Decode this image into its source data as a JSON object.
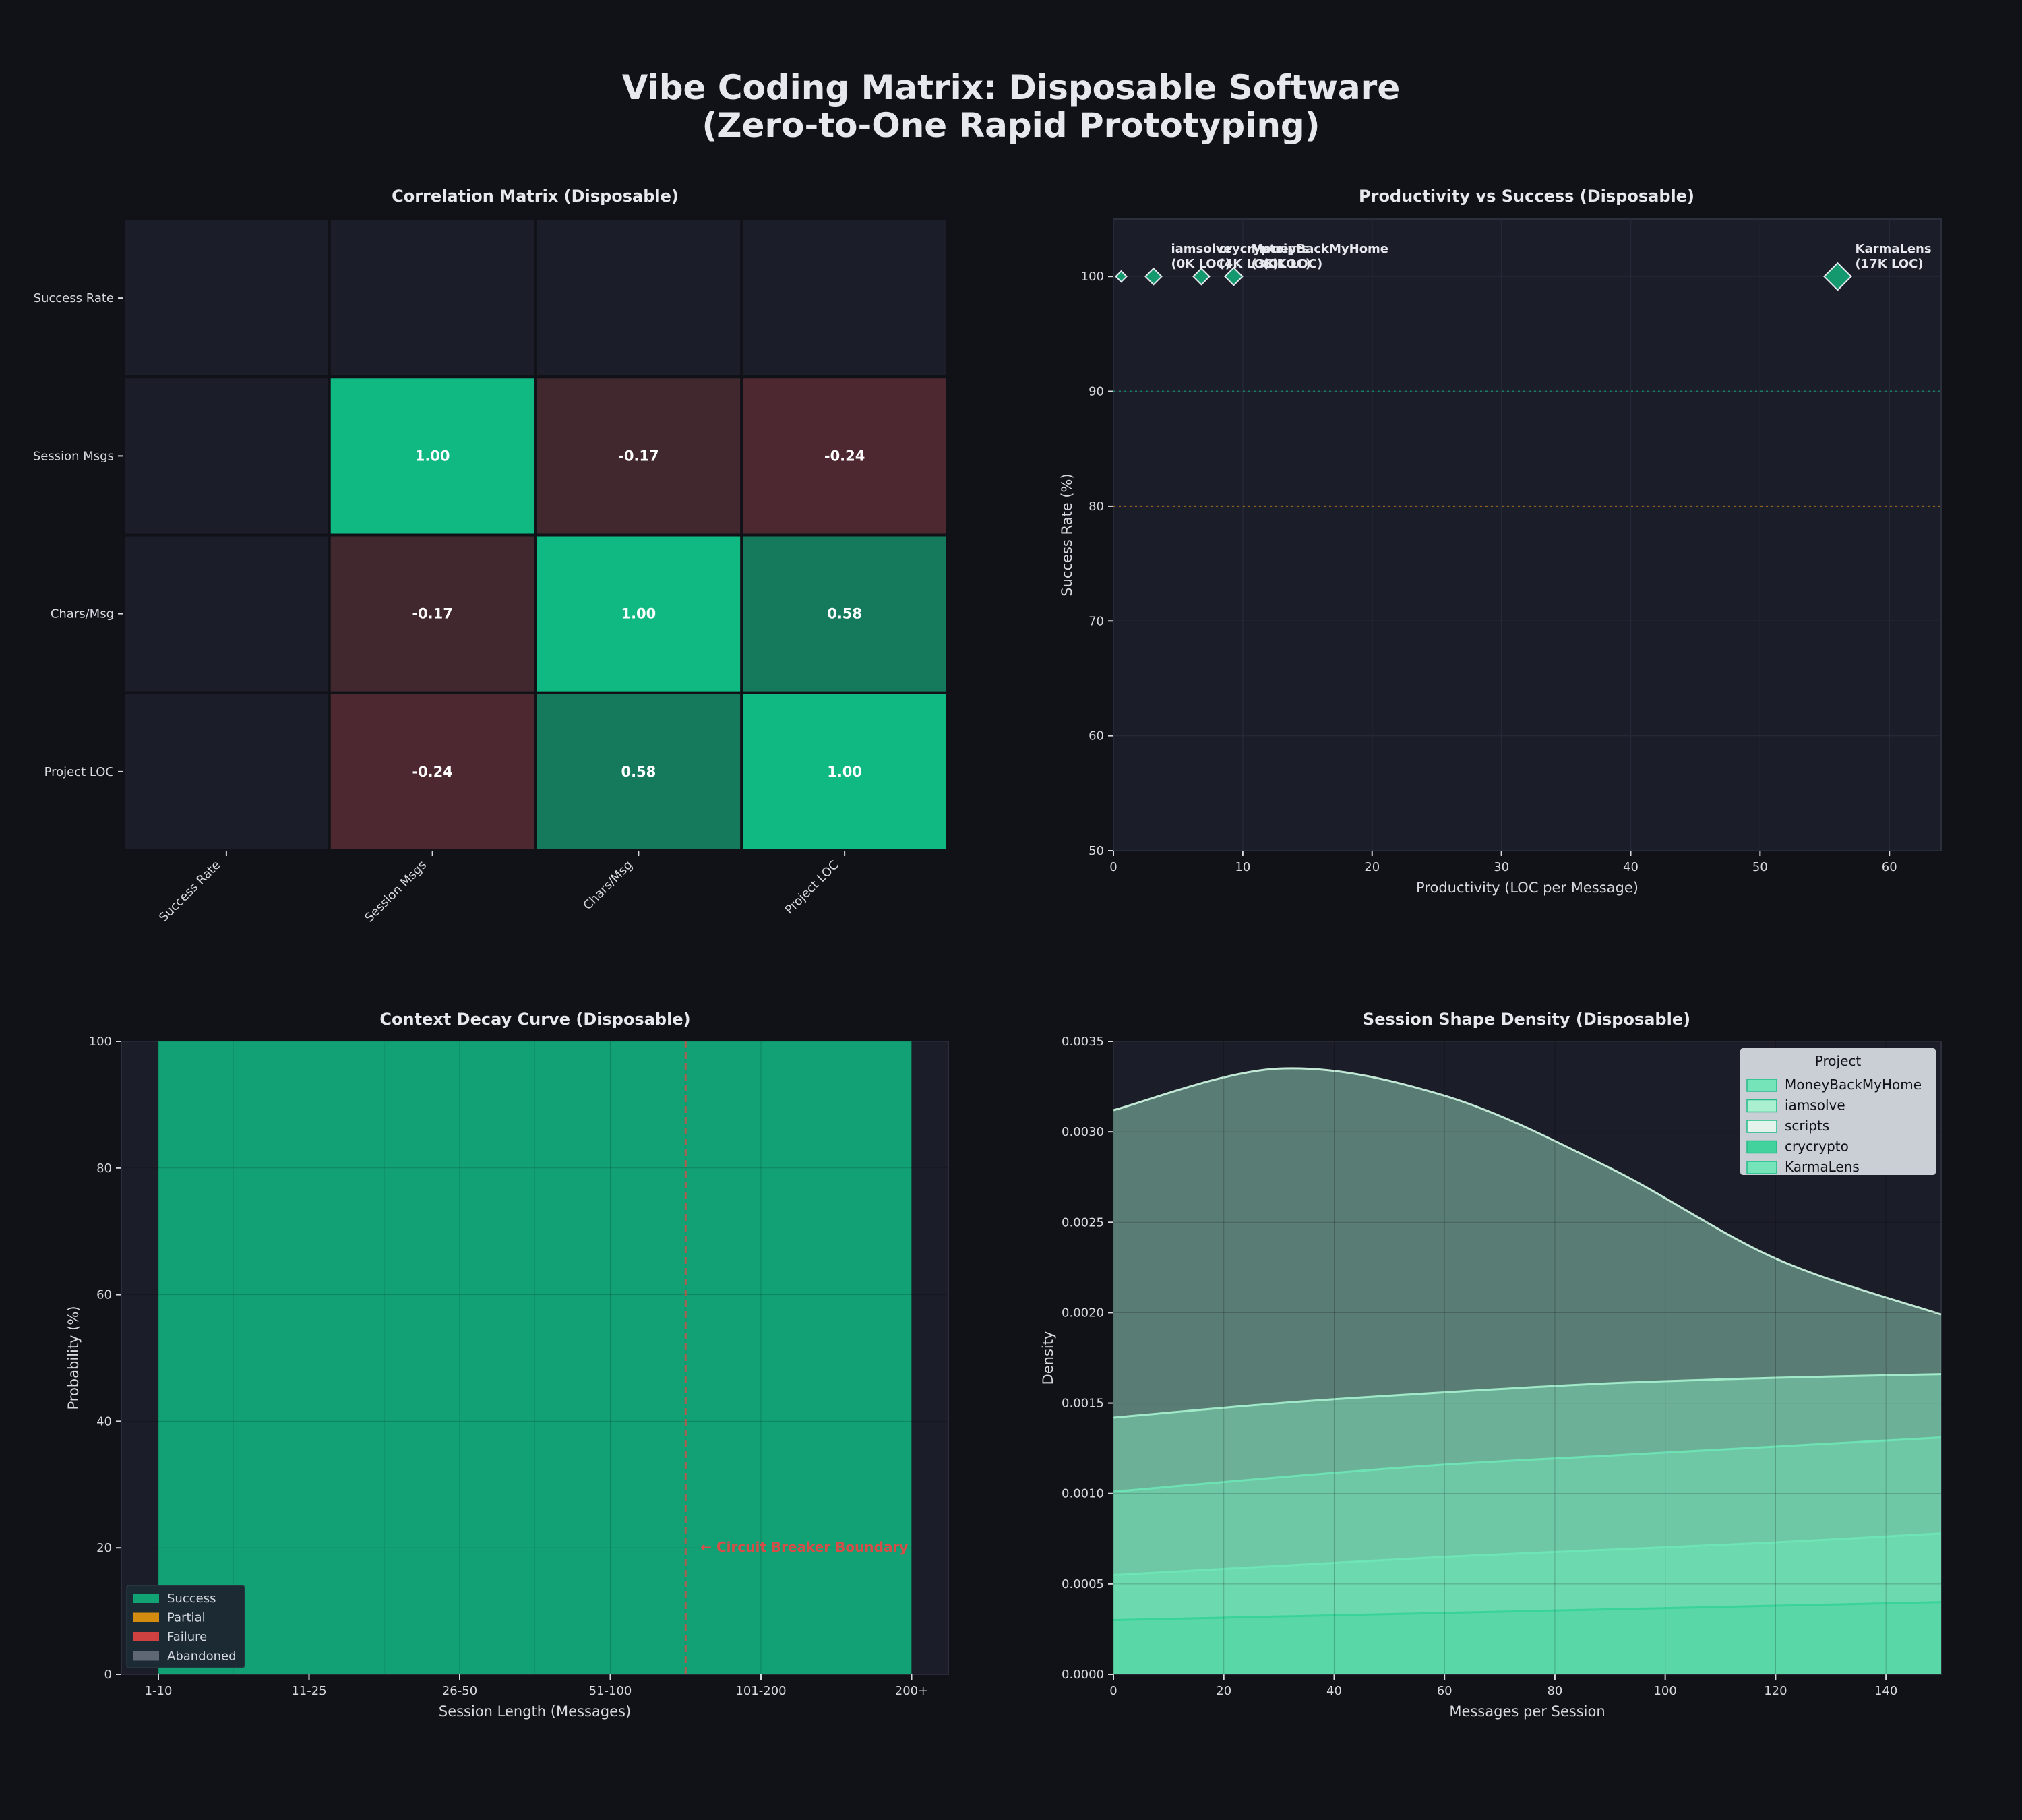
{
  "title_line1": "Vibe Coding Matrix: Disposable Software",
  "title_line2": "(Zero-to-One Rapid Prototyping)",
  "colors": {
    "background": "#111217",
    "panel_bg": "#1b1d28",
    "success_green": "#10b981",
    "dark_green": "#157a5c",
    "negative_red": "#4e2830",
    "mild_red": "#40282e",
    "partial_orange": "#f59e0b",
    "failure_red": "#ef4444",
    "abandoned_gray": "#6b7280"
  },
  "chart_data": [
    {
      "type": "heatmap",
      "title": "Correlation Matrix (Disposable)",
      "rows": [
        "Success Rate",
        "Session Msgs",
        "Chars/Msg",
        "Project LOC"
      ],
      "cols": [
        "Success Rate",
        "Session Msgs",
        "Chars/Msg",
        "Project LOC"
      ],
      "values": [
        [
          null,
          null,
          null,
          null
        ],
        [
          null,
          1.0,
          -0.17,
          -0.24
        ],
        [
          null,
          -0.17,
          1.0,
          0.58
        ],
        [
          null,
          -0.24,
          0.58,
          1.0
        ]
      ],
      "labels": [
        [
          "",
          "",
          "",
          ""
        ],
        [
          "",
          "1.00",
          "-0.17",
          "-0.24"
        ],
        [
          "",
          "-0.17",
          "1.00",
          "0.58"
        ],
        [
          "",
          "-0.24",
          "0.58",
          "1.00"
        ]
      ]
    },
    {
      "type": "scatter",
      "title": "Productivity vs Success (Disposable)",
      "xlabel": "Productivity (LOC per Message)",
      "ylabel": "Success Rate (%)",
      "xlim": [
        0,
        64
      ],
      "ylim": [
        50,
        105
      ],
      "xticks": [
        0,
        10,
        20,
        30,
        40,
        50,
        60
      ],
      "yticks": [
        50,
        60,
        70,
        80,
        90,
        100
      ],
      "reference_lines": [
        {
          "y": 90,
          "color": "#10b981"
        },
        {
          "y": 80,
          "color": "#f59e0b"
        }
      ],
      "points": [
        {
          "x": 0.6,
          "y": 100,
          "size": 8,
          "label_line1": "",
          "label_line2": ""
        },
        {
          "x": 3.1,
          "y": 100,
          "size": 12,
          "label_line1": "iamsolve",
          "label_line2": "(0K LOC)"
        },
        {
          "x": 6.8,
          "y": 100,
          "size": 12,
          "label_line1": "crycrypto",
          "label_line2": "(4K LOC)"
        },
        {
          "x": 9.3,
          "y": 100,
          "size": 13,
          "label_line1": "MoneyBackMyHome",
          "label_line2": "(3K LOC)"
        },
        {
          "x": 10.2,
          "y": 100,
          "size": 0,
          "label_line1": "scripts",
          "label_line2": "(0K LOC)"
        },
        {
          "x": 56,
          "y": 100,
          "size": 20,
          "label_line1": "KarmaLens",
          "label_line2": "(17K LOC)"
        }
      ]
    },
    {
      "type": "bar",
      "stacked": true,
      "title": "Context Decay Curve (Disposable)",
      "xlabel": "Session Length (Messages)",
      "ylabel": "Probability (%)",
      "categories": [
        "1-10",
        "11-25",
        "26-50",
        "51-100",
        "101-200",
        "200+"
      ],
      "ylim": [
        0,
        100
      ],
      "yticks": [
        0,
        20,
        40,
        60,
        80,
        100
      ],
      "series": [
        {
          "name": "Success",
          "color": "#10b981",
          "values": [
            100,
            100,
            100,
            100,
            100,
            100
          ]
        },
        {
          "name": "Partial",
          "color": "#f59e0b",
          "values": [
            0,
            0,
            0,
            0,
            0,
            0
          ]
        },
        {
          "name": "Failure",
          "color": "#ef4444",
          "values": [
            0,
            0,
            0,
            0,
            0,
            0
          ]
        },
        {
          "name": "Abandoned",
          "color": "#6b7280",
          "values": [
            0,
            0,
            0,
            0,
            0,
            0
          ]
        }
      ],
      "annotation": "← Circuit Breaker Boundary",
      "boundary_position": 3.5,
      "legend_position": "lower-left"
    },
    {
      "type": "area",
      "title": "Session Shape Density (Disposable)",
      "xlabel": "Messages per Session",
      "ylabel": "Density",
      "xlim": [
        0,
        150
      ],
      "ylim": [
        0,
        0.0035
      ],
      "xticks": [
        0,
        20,
        40,
        60,
        80,
        100,
        120,
        140
      ],
      "yticks": [
        "0.0000",
        "0.0005",
        "0.0010",
        "0.0015",
        "0.0020",
        "0.0025",
        "0.0030",
        "0.0035"
      ],
      "legend_title": "Project",
      "legend_position": "top-right",
      "x": [
        0,
        30,
        60,
        90,
        120,
        150
      ],
      "series": [
        {
          "name": "MoneyBackMyHome",
          "values": [
            0.00055,
            0.0006,
            0.00065,
            0.00069,
            0.00073,
            0.00078
          ]
        },
        {
          "name": "iamsolve",
          "values": [
            0.00101,
            0.00109,
            0.00116,
            0.00121,
            0.00126,
            0.00131
          ]
        },
        {
          "name": "scripts",
          "values": [
            0.00142,
            0.0015,
            0.00156,
            0.00161,
            0.00164,
            0.00166
          ]
        },
        {
          "name": "crycrypto",
          "values": [
            0.00312,
            0.00335,
            0.0032,
            0.0028,
            0.0023,
            0.00199
          ]
        },
        {
          "name": "KarmaLens",
          "values": [
            0.0003,
            0.00032,
            0.00034,
            0.00036,
            0.00038,
            0.0004
          ]
        }
      ]
    }
  ]
}
